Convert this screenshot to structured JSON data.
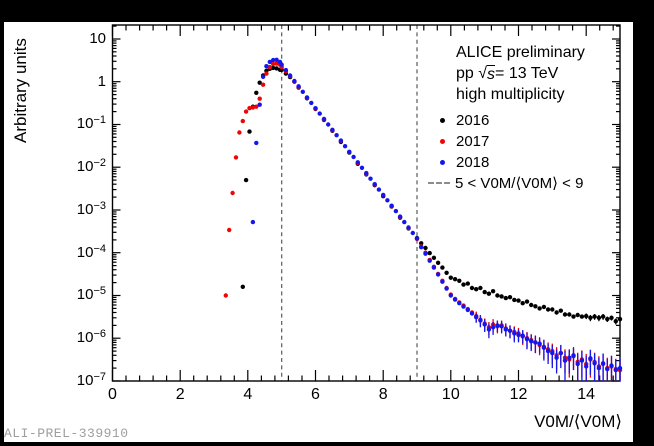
{
  "window": {
    "background": "#000000",
    "canvas_background": "#ffffff"
  },
  "watermark": {
    "label": "ALI-PREL-339910",
    "color": "#9e9e9e"
  },
  "legend": {
    "entries": [
      {
        "type": "text",
        "label": "ALICE preliminary"
      },
      {
        "type": "sqrt",
        "pre": "pp ",
        "radical": "√",
        "arg": "s",
        "post": " = 13 TeV"
      },
      {
        "type": "text",
        "label": "high multiplicity"
      },
      {
        "type": "dot",
        "label": "2016",
        "color": "#000000"
      },
      {
        "type": "dot",
        "label": "2017",
        "color": "#ee0505"
      },
      {
        "type": "dot",
        "label": "2018",
        "color": "#1515ee"
      },
      {
        "type": "dash",
        "label": "5 < V0M/⟨V0M⟩ < 9",
        "color": "#8c8c8c"
      }
    ]
  },
  "chart_data": {
    "type": "scatter",
    "title": "",
    "xlabel": "V0M/⟨V0M⟩",
    "ylabel": "Arbitrary units",
    "y_scale": "log",
    "xlim": [
      0,
      15
    ],
    "ylim": [
      1e-07,
      21.2
    ],
    "grid": false,
    "legend_position": "top-right",
    "x_major_ticks": [
      0,
      2,
      4,
      6,
      8,
      10,
      12,
      14
    ],
    "x_minor_step": 0.4,
    "y_tick_labels": [
      {
        "v": 10,
        "t": "10",
        "e": ""
      },
      {
        "v": 1,
        "t": "1",
        "e": ""
      },
      {
        "v": 0.1,
        "t": "10",
        "e": "−1"
      },
      {
        "v": 0.01,
        "t": "10",
        "e": "−2"
      },
      {
        "v": 0.001,
        "t": "10",
        "e": "−3"
      },
      {
        "v": 0.0001,
        "t": "10",
        "e": "−4"
      },
      {
        "v": 1e-05,
        "t": "10",
        "e": "−5"
      },
      {
        "v": 1e-06,
        "t": "10",
        "e": "−6"
      },
      {
        "v": 1e-07,
        "t": "10",
        "e": "−7"
      }
    ],
    "cut_lines": {
      "x": [
        5,
        9
      ],
      "style": "dashed",
      "color": "#5a5a5a",
      "label": "5 < V0M/⟨V0M⟩ < 9"
    },
    "series": [
      {
        "name": "2016",
        "color": "#000000",
        "marker": "circle",
        "points": [
          [
            3.85,
            1.6e-05
          ],
          [
            3.95,
            0.005
          ],
          [
            4.05,
            0.068
          ],
          [
            4.15,
            0.26
          ],
          [
            4.25,
            0.55
          ],
          [
            4.35,
            0.95
          ],
          [
            4.45,
            1.4
          ],
          [
            4.55,
            1.8
          ],
          [
            4.65,
            2.0
          ],
          [
            4.75,
            2.1
          ],
          [
            4.85,
            2.05
          ],
          [
            4.95,
            1.9
          ],
          [
            5.0,
            1.9
          ],
          [
            5.125,
            1.55
          ],
          [
            5.25,
            1.28
          ],
          [
            5.375,
            1.0
          ],
          [
            5.5,
            0.73
          ],
          [
            5.75,
            0.41
          ],
          [
            6.0,
            0.23
          ],
          [
            6.25,
            0.127
          ],
          [
            6.5,
            0.071
          ],
          [
            6.75,
            0.039
          ],
          [
            7.0,
            0.022
          ],
          [
            7.25,
            0.012
          ],
          [
            7.5,
            0.0068
          ],
          [
            7.75,
            0.0038
          ],
          [
            8.0,
            0.0021
          ],
          [
            8.25,
            0.0012
          ],
          [
            8.5,
            0.00066
          ],
          [
            8.75,
            0.00037
          ],
          [
            9.0,
            0.00022
          ],
          [
            9.125,
            0.000166
          ],
          [
            9.25,
            0.000129
          ],
          [
            9.375,
            9.8e-05
          ],
          [
            9.5,
            7.6e-05
          ],
          [
            9.625,
            5.8e-05
          ],
          [
            9.75,
            4.5e-05
          ],
          [
            9.875,
            3.4e-05
          ],
          [
            10.0,
            2.6e-05
          ],
          [
            10.125,
            2.4e-05
          ],
          [
            10.25,
            2.2e-05
          ],
          [
            10.375,
            1.8e-05
          ],
          [
            10.5,
            1.9e-05
          ],
          [
            10.625,
            1.5e-05
          ],
          [
            10.75,
            1.4e-05
          ],
          [
            10.875,
            1.5e-05
          ],
          [
            11.0,
            1.2e-05
          ],
          [
            11.125,
            1.1e-05
          ],
          [
            11.25,
            1.26e-05
          ],
          [
            11.375,
            1e-05
          ],
          [
            11.5,
            9.5e-06
          ],
          [
            11.625,
            8.7e-06
          ],
          [
            11.75,
            9.1e-06
          ],
          [
            11.875,
            7.9e-06
          ],
          [
            12.0,
            7.6e-06
          ],
          [
            12.125,
            6.6e-06
          ],
          [
            12.25,
            7.2e-06
          ],
          [
            12.375,
            6e-06
          ],
          [
            12.5,
            5.6e-06
          ],
          [
            12.625,
            5e-06
          ],
          [
            12.75,
            5.4e-06
          ],
          [
            12.875,
            4.7e-06
          ],
          [
            13.0,
            4.7e-06
          ],
          [
            13.125,
            4e-06
          ],
          [
            13.25,
            4.4e-06
          ],
          [
            13.375,
            3.6e-06
          ],
          [
            13.5,
            3.6e-06
          ],
          [
            13.625,
            3.2e-06
          ],
          [
            13.75,
            3.5e-06
          ],
          [
            13.875,
            3.2e-06
          ],
          [
            14.0,
            3.3e-06,
            5e-07
          ],
          [
            14.125,
            3e-06,
            5e-07
          ],
          [
            14.25,
            3.2e-06,
            5e-07
          ],
          [
            14.375,
            3e-06,
            5e-07
          ],
          [
            14.5,
            3.2e-06,
            5e-07
          ],
          [
            14.625,
            2.8e-06,
            4e-07
          ],
          [
            14.75,
            3e-06,
            4e-07
          ],
          [
            14.875,
            2.5e-06,
            4e-07
          ],
          [
            15.0,
            2.8e-06,
            4e-07
          ]
        ]
      },
      {
        "name": "2017",
        "color": "#ee0505",
        "marker": "circle",
        "points": [
          [
            3.35,
            1e-05
          ],
          [
            3.45,
            0.00034
          ],
          [
            3.55,
            0.0025
          ],
          [
            3.65,
            0.017
          ],
          [
            3.75,
            0.065
          ],
          [
            3.85,
            0.12
          ],
          [
            3.95,
            0.2
          ],
          [
            4.05,
            0.24
          ],
          [
            4.15,
            0.25
          ],
          [
            4.25,
            0.26
          ],
          [
            4.35,
            0.4
          ],
          [
            4.45,
            0.85
          ],
          [
            4.55,
            1.55
          ],
          [
            4.65,
            2.2
          ],
          [
            4.75,
            2.6
          ],
          [
            4.85,
            2.65
          ],
          [
            4.95,
            2.5
          ],
          [
            5.0,
            2.2
          ],
          [
            5.125,
            1.75
          ],
          [
            5.25,
            1.35
          ],
          [
            5.375,
            1.02
          ],
          [
            5.5,
            0.755
          ],
          [
            5.75,
            0.42
          ],
          [
            6.0,
            0.235
          ],
          [
            6.25,
            0.131
          ],
          [
            6.5,
            0.073
          ],
          [
            6.75,
            0.041
          ],
          [
            7.0,
            0.0226
          ],
          [
            7.25,
            0.0126
          ],
          [
            7.5,
            0.007
          ],
          [
            7.75,
            0.0039
          ],
          [
            8.0,
            0.0022
          ],
          [
            8.25,
            0.00122
          ],
          [
            8.5,
            0.00068
          ],
          [
            8.75,
            0.00038
          ],
          [
            9.0,
            0.00021
          ],
          [
            9.125,
            0.00014
          ],
          [
            9.25,
            0.0001
          ],
          [
            9.375,
            6.8e-05
          ],
          [
            9.5,
            4.7e-05
          ],
          [
            9.625,
            3.2e-05
          ],
          [
            9.75,
            2.2e-05
          ],
          [
            9.875,
            1.5e-05
          ],
          [
            10.0,
            1.05e-05
          ],
          [
            10.125,
            8.3e-06
          ],
          [
            10.25,
            6.9e-06
          ],
          [
            10.375,
            5.8e-06
          ],
          [
            10.5,
            4.8e-06
          ],
          [
            10.625,
            4e-06
          ],
          [
            10.75,
            3.3e-06,
            9e-07
          ],
          [
            10.875,
            2.7e-06,
            8e-07
          ],
          [
            11.0,
            2.2e-06,
            7e-07
          ],
          [
            11.125,
            1.8e-06,
            6e-07
          ],
          [
            11.25,
            2.1e-06,
            7e-07
          ],
          [
            11.375,
            1.9e-06,
            6e-07
          ],
          [
            11.5,
            2e-06,
            6e-07
          ],
          [
            11.625,
            1.7e-06,
            5.5e-07
          ],
          [
            11.75,
            1.5e-06,
            5e-07
          ],
          [
            11.875,
            1.4e-06,
            5e-07
          ],
          [
            12.0,
            1.3e-06,
            4.5e-07
          ],
          [
            12.125,
            1.1e-06,
            4e-07
          ],
          [
            12.25,
            1e-06,
            4e-07
          ],
          [
            12.375,
            9e-07,
            3.5e-07
          ],
          [
            12.5,
            8e-07,
            3.5e-07
          ],
          [
            12.625,
            7e-07,
            3e-07
          ],
          [
            12.75,
            6.3e-07,
            3e-07
          ],
          [
            12.875,
            5.5e-07,
            2.5e-07
          ],
          [
            13.0,
            5e-07,
            2.5e-07
          ],
          [
            13.125,
            4e-07,
            2.2e-07
          ],
          [
            13.25,
            4.5e-07,
            2.2e-07
          ],
          [
            13.375,
            3.5e-07,
            2e-07
          ],
          [
            13.5,
            3.2e-07,
            2e-07
          ],
          [
            13.625,
            3.8e-07,
            2e-07
          ],
          [
            13.75,
            2.8e-07,
            1.8e-07
          ],
          [
            13.875,
            3.2e-07,
            2e-07
          ],
          [
            14.0,
            2.5e-07,
            1.8e-07
          ],
          [
            14.125,
            3.2e-07,
            2e-07
          ],
          [
            14.25,
            2.8e-07,
            1.8e-07
          ],
          [
            14.375,
            2.2e-07,
            1.6e-07
          ],
          [
            14.5,
            2.5e-07,
            1.8e-07
          ],
          [
            14.625,
            2e-07,
            1.5e-07
          ],
          [
            14.75,
            2.2e-07,
            1.6e-07
          ],
          [
            14.875,
            1.9e-07,
            1.4e-07
          ],
          [
            15.0,
            1.8e-07,
            1.4e-07
          ]
        ]
      },
      {
        "name": "2018",
        "color": "#1515ee",
        "marker": "circle",
        "points": [
          [
            4.15,
            0.00052
          ],
          [
            4.25,
            0.037
          ],
          [
            4.35,
            0.29
          ],
          [
            4.45,
            1.3
          ],
          [
            4.55,
            2.3
          ],
          [
            4.65,
            2.9
          ],
          [
            4.75,
            3.2
          ],
          [
            4.85,
            3.25
          ],
          [
            4.95,
            2.9
          ],
          [
            5.0,
            2.5
          ],
          [
            5.125,
            1.87
          ],
          [
            5.25,
            1.4
          ],
          [
            5.375,
            1.04
          ],
          [
            5.5,
            0.78
          ],
          [
            5.625,
            0.58
          ],
          [
            5.75,
            0.43
          ],
          [
            5.875,
            0.32
          ],
          [
            6.0,
            0.24
          ],
          [
            6.125,
            0.18
          ],
          [
            6.25,
            0.135
          ],
          [
            6.375,
            0.1
          ],
          [
            6.5,
            0.075
          ],
          [
            6.625,
            0.056
          ],
          [
            6.75,
            0.042
          ],
          [
            6.875,
            0.031
          ],
          [
            7.0,
            0.023
          ],
          [
            7.125,
            0.0174
          ],
          [
            7.25,
            0.013
          ],
          [
            7.375,
            0.0097
          ],
          [
            7.5,
            0.0073
          ],
          [
            7.625,
            0.0054
          ],
          [
            7.75,
            0.004
          ],
          [
            7.875,
            0.003
          ],
          [
            8.0,
            0.00225
          ],
          [
            8.125,
            0.00168
          ],
          [
            8.25,
            0.00126
          ],
          [
            8.375,
            0.00094
          ],
          [
            8.5,
            0.0007
          ],
          [
            8.625,
            0.00052
          ],
          [
            8.75,
            0.00039
          ],
          [
            8.875,
            0.00029
          ],
          [
            9.0,
            0.000215
          ],
          [
            9.125,
            0.000135
          ],
          [
            9.25,
            9.5e-05
          ],
          [
            9.375,
            6.5e-05
          ],
          [
            9.5,
            4.5e-05
          ],
          [
            9.625,
            3.1e-05
          ],
          [
            9.75,
            2.1e-05
          ],
          [
            9.875,
            1.45e-05
          ],
          [
            10.0,
            1e-05
          ],
          [
            10.125,
            8e-06
          ],
          [
            10.25,
            6.6e-06
          ],
          [
            10.375,
            5.5e-06
          ],
          [
            10.5,
            4.6e-06
          ],
          [
            10.625,
            3.8e-06
          ],
          [
            10.75,
            3.1e-06,
            8e-07
          ],
          [
            10.875,
            2.6e-06,
            8e-07
          ],
          [
            11.0,
            2.1e-06,
            7e-07
          ],
          [
            11.125,
            1.6e-06,
            6e-07
          ],
          [
            11.25,
            1.8e-06,
            6e-07
          ],
          [
            11.375,
            2e-06,
            6e-07
          ],
          [
            11.5,
            1.9e-06,
            6e-07
          ],
          [
            11.625,
            1.6e-06,
            5e-07
          ],
          [
            11.75,
            1.5e-06,
            5e-07
          ],
          [
            11.875,
            1.3e-06,
            5e-07
          ],
          [
            12.0,
            1.2e-06,
            4e-07
          ],
          [
            12.125,
            1.15e-06,
            4e-07
          ],
          [
            12.25,
            9.5e-07,
            4e-07
          ],
          [
            12.375,
            8.5e-07,
            3.5e-07
          ],
          [
            12.5,
            8e-07,
            3.5e-07
          ],
          [
            12.625,
            7.5e-07,
            3e-07
          ],
          [
            12.75,
            6e-07,
            3e-07
          ],
          [
            12.875,
            5e-07,
            2.5e-07
          ],
          [
            13.0,
            4.5e-07,
            2.5e-07
          ],
          [
            13.125,
            3.5e-07,
            2e-07
          ],
          [
            13.25,
            4.5e-07,
            2.5e-07
          ],
          [
            13.375,
            3e-07,
            2e-07
          ],
          [
            13.5,
            3.5e-07,
            2e-07
          ],
          [
            13.625,
            4e-07,
            2.2e-07
          ],
          [
            13.75,
            2.5e-07,
            1.8e-07
          ],
          [
            13.875,
            3e-07,
            2e-07
          ],
          [
            14.0,
            2.2e-07,
            1.6e-07
          ],
          [
            14.125,
            3.4e-07,
            2e-07
          ],
          [
            14.25,
            2.6e-07,
            1.8e-07
          ],
          [
            14.375,
            2e-07,
            1.5e-07
          ],
          [
            14.5,
            2.6e-07,
            1.8e-07
          ],
          [
            14.625,
            1.9e-07,
            1.4e-07
          ],
          [
            14.75,
            2.3e-07,
            1.6e-07
          ],
          [
            14.875,
            1.8e-07,
            1.4e-07
          ],
          [
            15.0,
            2e-07,
            1.5e-07
          ]
        ]
      }
    ]
  }
}
